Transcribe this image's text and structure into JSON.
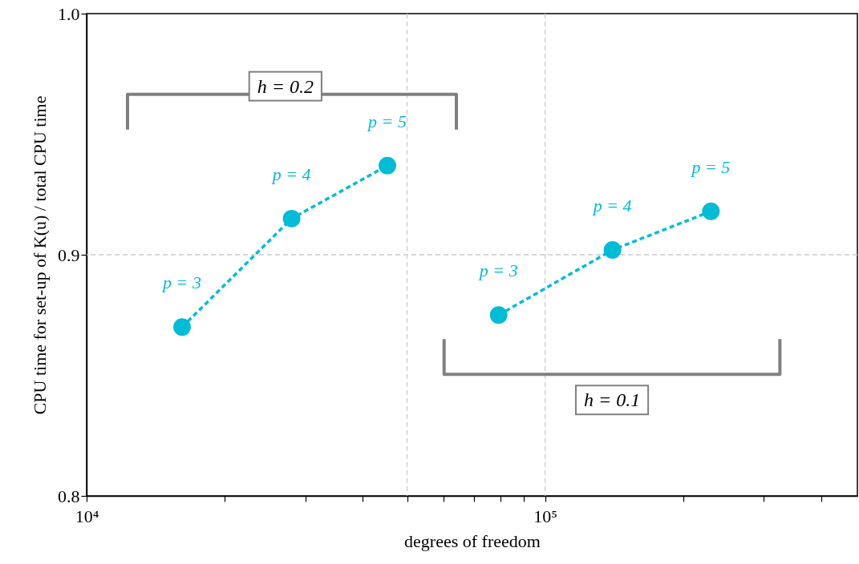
{
  "chart_data": {
    "type": "line",
    "xlabel": "degrees of freedom",
    "ylabel": "CPU time for set-up of K(u) / total CPU time",
    "log": "x",
    "xlim": [
      10000,
      480000
    ],
    "xticks": [
      {
        "value": 10000,
        "label": "10⁴"
      },
      {
        "value": 20000,
        "label": null
      },
      {
        "value": 30000,
        "label": null
      },
      {
        "value": 40000,
        "label": null
      },
      {
        "value": 50000,
        "label": null
      },
      {
        "value": 60000,
        "label": null
      },
      {
        "value": 70000,
        "label": null
      },
      {
        "value": 80000,
        "label": null
      },
      {
        "value": 90000,
        "label": null
      },
      {
        "value": 100000,
        "label": "10⁵"
      },
      {
        "value": 200000,
        "label": null
      },
      {
        "value": 300000,
        "label": null
      },
      {
        "value": 400000,
        "label": null
      }
    ],
    "ylim": [
      0.8,
      1.0
    ],
    "yticks": [
      0.8,
      0.9,
      {
        "value": 1.0,
        "label": "1.0"
      }
    ],
    "marker": "circle",
    "line_style": "dashed",
    "series": [
      {
        "color": "#00bcd4",
        "x": [
          16150,
          28000,
          45300
        ],
        "values": [
          0.87,
          0.915,
          0.937
        ]
      },
      {
        "color": "#00bcd4",
        "x": [
          79200,
          140300,
          230000
        ],
        "values": [
          0.875,
          0.902,
          0.918
        ]
      }
    ],
    "ref_lines": [
      {
        "axis": "x",
        "value": 50000,
        "color": "#cccccc",
        "line_style": "dashed"
      },
      {
        "axis": "x",
        "value": 100000,
        "color": "#cccccc",
        "line_style": "dashed"
      },
      {
        "axis": "y",
        "value": 0.9,
        "color": "#cccccc",
        "line_style": "dashed"
      }
    ],
    "annotations": [
      "h = 0.2",
      "h = 0.1",
      {
        "text": "p = 3",
        "x": 16150,
        "y": 0.87
      },
      {
        "text": "p = 4",
        "x": 28000,
        "y": 0.915
      },
      {
        "text": "p = 5",
        "x": 45300,
        "y": 0.937
      },
      {
        "text": "p = 3",
        "x": 79200,
        "y": 0.875
      },
      {
        "text": "p = 4",
        "x": 140300,
        "y": 0.902
      },
      {
        "text": "p = 5",
        "x": 230000,
        "y": 0.918
      }
    ]
  }
}
